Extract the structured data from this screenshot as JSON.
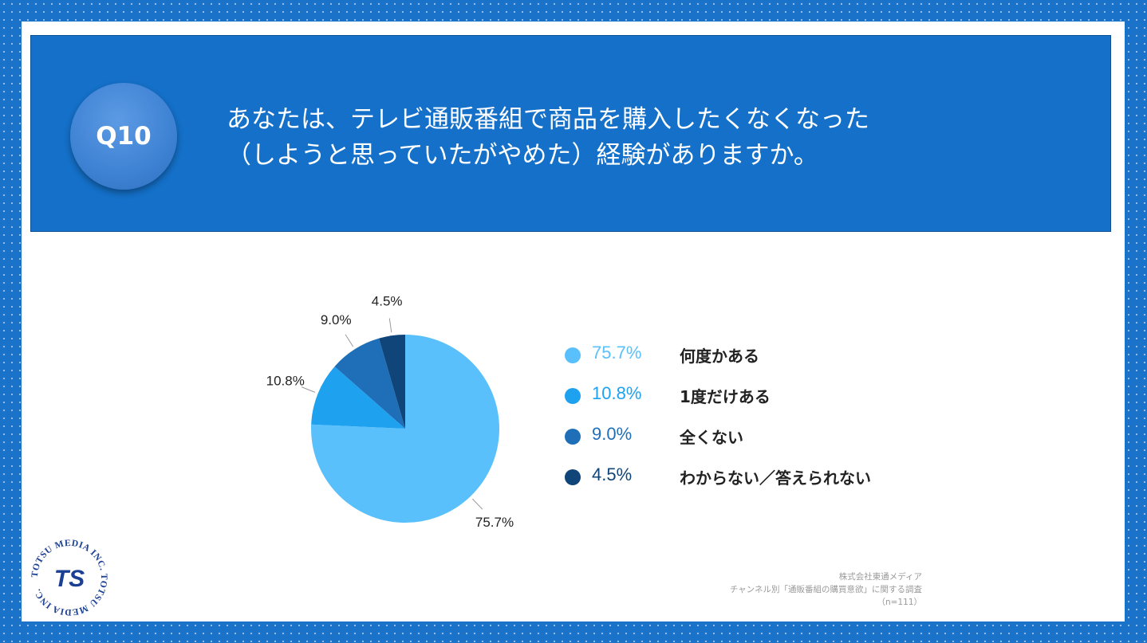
{
  "header": {
    "badge": "Q10",
    "question_line1": "あなたは、テレビ通販番組で商品を購入したくなくなった",
    "question_line2": "（しようと思っていたがやめた）経験がありますか。"
  },
  "colors": {
    "background": "#1a72c9",
    "header": "#1470c8",
    "slice_1": "#5ac0fc",
    "slice_2": "#1ea2f0",
    "slice_3": "#1f6fb8",
    "slice_4": "#0f4578"
  },
  "chart_data": {
    "type": "pie",
    "title": "あなたは、テレビ通販番組で商品を購入したくなくなった（しようと思っていたがやめた）経験がありますか。",
    "slices": [
      {
        "label": "何度かある",
        "value": 75.7,
        "display": "75.7%"
      },
      {
        "label": "1度だけある",
        "value": 10.8,
        "display": "10.8%"
      },
      {
        "label": "全くない",
        "value": 9.0,
        "display": "9.0%"
      },
      {
        "label": "わからない／答えられない",
        "value": 4.5,
        "display": "4.5%"
      }
    ],
    "legend_position": "right"
  },
  "source": {
    "company": "株式会社東通メディア",
    "survey": "チャンネル別「通販番組の購買意欲」に関する調査",
    "sample": "（n=111）"
  },
  "logo": {
    "ring_text": "TOTSU MEDIA INC. TOTSU MEDIA INC. ",
    "mark": "TS"
  }
}
